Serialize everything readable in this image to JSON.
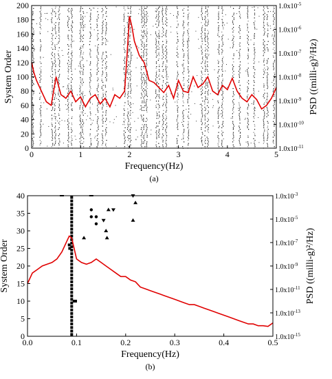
{
  "chart_data": [
    {
      "panel": "a",
      "caption": "(a)",
      "type": "scatter",
      "xlabel": "Frequency(Hz)",
      "ylabel": "System Order",
      "ylabel_right": "PSD ((milli-g)²/Hz)",
      "xlim": [
        0,
        5
      ],
      "ylim": [
        0,
        200
      ],
      "xticks": [
        "0",
        "1",
        "2",
        "3",
        "4",
        "5"
      ],
      "yticks": [
        "0",
        "20",
        "40",
        "60",
        "80",
        "100",
        "120",
        "140",
        "160",
        "180",
        "200"
      ],
      "right_ticks": [
        {
          "base": "1.0x10",
          "exp": "-11"
        },
        {
          "base": "1.0x10",
          "exp": "-10"
        },
        {
          "base": "1.0x10",
          "exp": "-9"
        },
        {
          "base": "1.0x10",
          "exp": "-8"
        },
        {
          "base": "1.0x10",
          "exp": "-7"
        },
        {
          "base": "1.0x10",
          "exp": "-6"
        },
        {
          "base": "1.0x10",
          "exp": "-5"
        }
      ],
      "psd_color": "#e00000",
      "stabilization_columns_hz": [
        0.03,
        0.18,
        0.42,
        0.48,
        0.56,
        0.75,
        0.82,
        1.0,
        1.05,
        1.2,
        1.35,
        1.45,
        1.52,
        1.9,
        1.97,
        2.02,
        2.25,
        2.3,
        2.35,
        2.55,
        2.6,
        2.68,
        2.75,
        2.98,
        3.1,
        3.2,
        3.48,
        3.55,
        3.6,
        3.82,
        3.9,
        4.12,
        4.25,
        4.42,
        4.55,
        4.75,
        4.82,
        4.95
      ],
      "psd_series": {
        "x": [
          0,
          0.05,
          0.1,
          0.2,
          0.3,
          0.4,
          0.5,
          0.6,
          0.7,
          0.8,
          0.9,
          1.0,
          1.1,
          1.2,
          1.3,
          1.4,
          1.5,
          1.6,
          1.7,
          1.8,
          1.9,
          1.95,
          2.0,
          2.05,
          2.1,
          2.2,
          2.3,
          2.4,
          2.5,
          2.6,
          2.7,
          2.8,
          2.9,
          3.0,
          3.1,
          3.2,
          3.3,
          3.4,
          3.5,
          3.6,
          3.7,
          3.8,
          3.9,
          4.0,
          4.1,
          4.2,
          4.3,
          4.4,
          4.5,
          4.6,
          4.7,
          4.8,
          4.9,
          5.0
        ],
        "y": [
          120,
          105,
          95,
          80,
          65,
          60,
          100,
          75,
          70,
          80,
          65,
          72,
          58,
          70,
          75,
          62,
          70,
          58,
          75,
          70,
          80,
          130,
          185,
          170,
          150,
          130,
          120,
          95,
          92,
          85,
          78,
          88,
          70,
          95,
          80,
          78,
          100,
          85,
          90,
          100,
          80,
          75,
          88,
          82,
          98,
          80,
          70,
          65,
          75,
          68,
          55,
          60,
          70,
          85
        ]
      }
    },
    {
      "panel": "b",
      "caption": "(b)",
      "type": "scatter",
      "xlabel": "Frequency(Hz)",
      "ylabel": "System Order",
      "ylabel_right": "PSD ((milli-g)²/Hz)",
      "xlim": [
        0,
        0.5
      ],
      "ylim": [
        0,
        40
      ],
      "xticks": [
        "0.0",
        "0.1",
        "0.2",
        "0.3",
        "0.4",
        "0.5"
      ],
      "yticks": [
        "0",
        "5",
        "10",
        "15",
        "20",
        "25",
        "30",
        "35",
        "40"
      ],
      "right_ticks": [
        {
          "base": "1.0x10",
          "exp": "-15"
        },
        {
          "base": "1.0x10",
          "exp": "-13"
        },
        {
          "base": "1.0x10",
          "exp": "-11"
        },
        {
          "base": "1.0x10",
          "exp": "-9"
        },
        {
          "base": "1.0x10",
          "exp": "-7"
        },
        {
          "base": "1.0x10",
          "exp": "-5"
        },
        {
          "base": "1.0x10",
          "exp": "-3"
        }
      ],
      "psd_color": "#e00000",
      "stable_column_hz": 0.09,
      "psd_series": {
        "x": [
          0,
          0.01,
          0.02,
          0.03,
          0.04,
          0.05,
          0.06,
          0.07,
          0.08,
          0.085,
          0.09,
          0.1,
          0.11,
          0.12,
          0.13,
          0.14,
          0.15,
          0.16,
          0.17,
          0.18,
          0.19,
          0.2,
          0.21,
          0.22,
          0.23,
          0.24,
          0.25,
          0.26,
          0.27,
          0.28,
          0.29,
          0.3,
          0.31,
          0.32,
          0.33,
          0.34,
          0.35,
          0.36,
          0.37,
          0.38,
          0.39,
          0.4,
          0.41,
          0.42,
          0.43,
          0.44,
          0.45,
          0.46,
          0.47,
          0.48,
          0.49,
          0.5
        ],
        "y": [
          15,
          18,
          19,
          20,
          20.5,
          21,
          22,
          24,
          27,
          28.5,
          28,
          22,
          21,
          20.5,
          21,
          22,
          21,
          20,
          19,
          18,
          17,
          17,
          16,
          15.5,
          14,
          13.5,
          13,
          12.5,
          12,
          11.5,
          11,
          10.5,
          10,
          9.5,
          9,
          9,
          8.5,
          8,
          7.5,
          7,
          6.5,
          6,
          5.5,
          5,
          4.5,
          4,
          3.5,
          3.5,
          3,
          3,
          2.8,
          3.8
        ]
      },
      "stable_points": [
        {
          "x": 0.09,
          "y": 0.5
        },
        {
          "x": 0.09,
          "y": 1.5
        },
        {
          "x": 0.09,
          "y": 2.5
        },
        {
          "x": 0.09,
          "y": 3.5
        },
        {
          "x": 0.09,
          "y": 4.5
        },
        {
          "x": 0.09,
          "y": 5.5
        },
        {
          "x": 0.09,
          "y": 6.5
        },
        {
          "x": 0.09,
          "y": 7.5
        },
        {
          "x": 0.09,
          "y": 8.5
        },
        {
          "x": 0.09,
          "y": 9.5
        },
        {
          "x": 0.09,
          "y": 10.5
        },
        {
          "x": 0.09,
          "y": 11.5
        },
        {
          "x": 0.09,
          "y": 12.5
        },
        {
          "x": 0.09,
          "y": 13.5
        },
        {
          "x": 0.09,
          "y": 14.5
        },
        {
          "x": 0.09,
          "y": 15.5
        },
        {
          "x": 0.09,
          "y": 16.5
        },
        {
          "x": 0.09,
          "y": 17.5
        },
        {
          "x": 0.09,
          "y": 18.5
        },
        {
          "x": 0.09,
          "y": 19.5
        },
        {
          "x": 0.09,
          "y": 20.5
        },
        {
          "x": 0.09,
          "y": 21.5
        },
        {
          "x": 0.09,
          "y": 22.5
        },
        {
          "x": 0.09,
          "y": 23.5
        },
        {
          "x": 0.09,
          "y": 24.5
        },
        {
          "x": 0.09,
          "y": 25.5
        },
        {
          "x": 0.09,
          "y": 26.5
        },
        {
          "x": 0.09,
          "y": 27.5
        },
        {
          "x": 0.09,
          "y": 28.5
        },
        {
          "x": 0.09,
          "y": 29.5
        },
        {
          "x": 0.09,
          "y": 30.5
        },
        {
          "x": 0.09,
          "y": 31.5
        },
        {
          "x": 0.09,
          "y": 32.5
        },
        {
          "x": 0.09,
          "y": 33.5
        },
        {
          "x": 0.09,
          "y": 34.5
        },
        {
          "x": 0.09,
          "y": 35.5
        },
        {
          "x": 0.09,
          "y": 36.5
        },
        {
          "x": 0.09,
          "y": 37.5
        },
        {
          "x": 0.09,
          "y": 38.5
        },
        {
          "x": 0.09,
          "y": 39.5
        },
        {
          "x": 0.085,
          "y": 26
        },
        {
          "x": 0.086,
          "y": 25
        },
        {
          "x": 0.095,
          "y": 10
        },
        {
          "x": 0.098,
          "y": 10
        }
      ],
      "other_points": [
        {
          "x": 0.07,
          "y": 40,
          "marker": "dash"
        },
        {
          "x": 0.13,
          "y": 40,
          "marker": "dash"
        },
        {
          "x": 0.13,
          "y": 34,
          "marker": "circle"
        },
        {
          "x": 0.13,
          "y": 36,
          "marker": "circle"
        },
        {
          "x": 0.14,
          "y": 32,
          "marker": "circle"
        },
        {
          "x": 0.14,
          "y": 34,
          "marker": "circle"
        },
        {
          "x": 0.155,
          "y": 33,
          "marker": "triangle-down"
        },
        {
          "x": 0.16,
          "y": 30,
          "marker": "triangle-up"
        },
        {
          "x": 0.162,
          "y": 28,
          "marker": "triangle-up"
        },
        {
          "x": 0.165,
          "y": 36,
          "marker": "triangle-up"
        },
        {
          "x": 0.175,
          "y": 36,
          "marker": "triangle-down"
        },
        {
          "x": 0.115,
          "y": 28,
          "marker": "triangle-up"
        },
        {
          "x": 0.215,
          "y": 40,
          "marker": "triangle-down"
        },
        {
          "x": 0.22,
          "y": 38,
          "marker": "triangle-up"
        },
        {
          "x": 0.215,
          "y": 33,
          "marker": "triangle-up"
        }
      ]
    }
  ]
}
